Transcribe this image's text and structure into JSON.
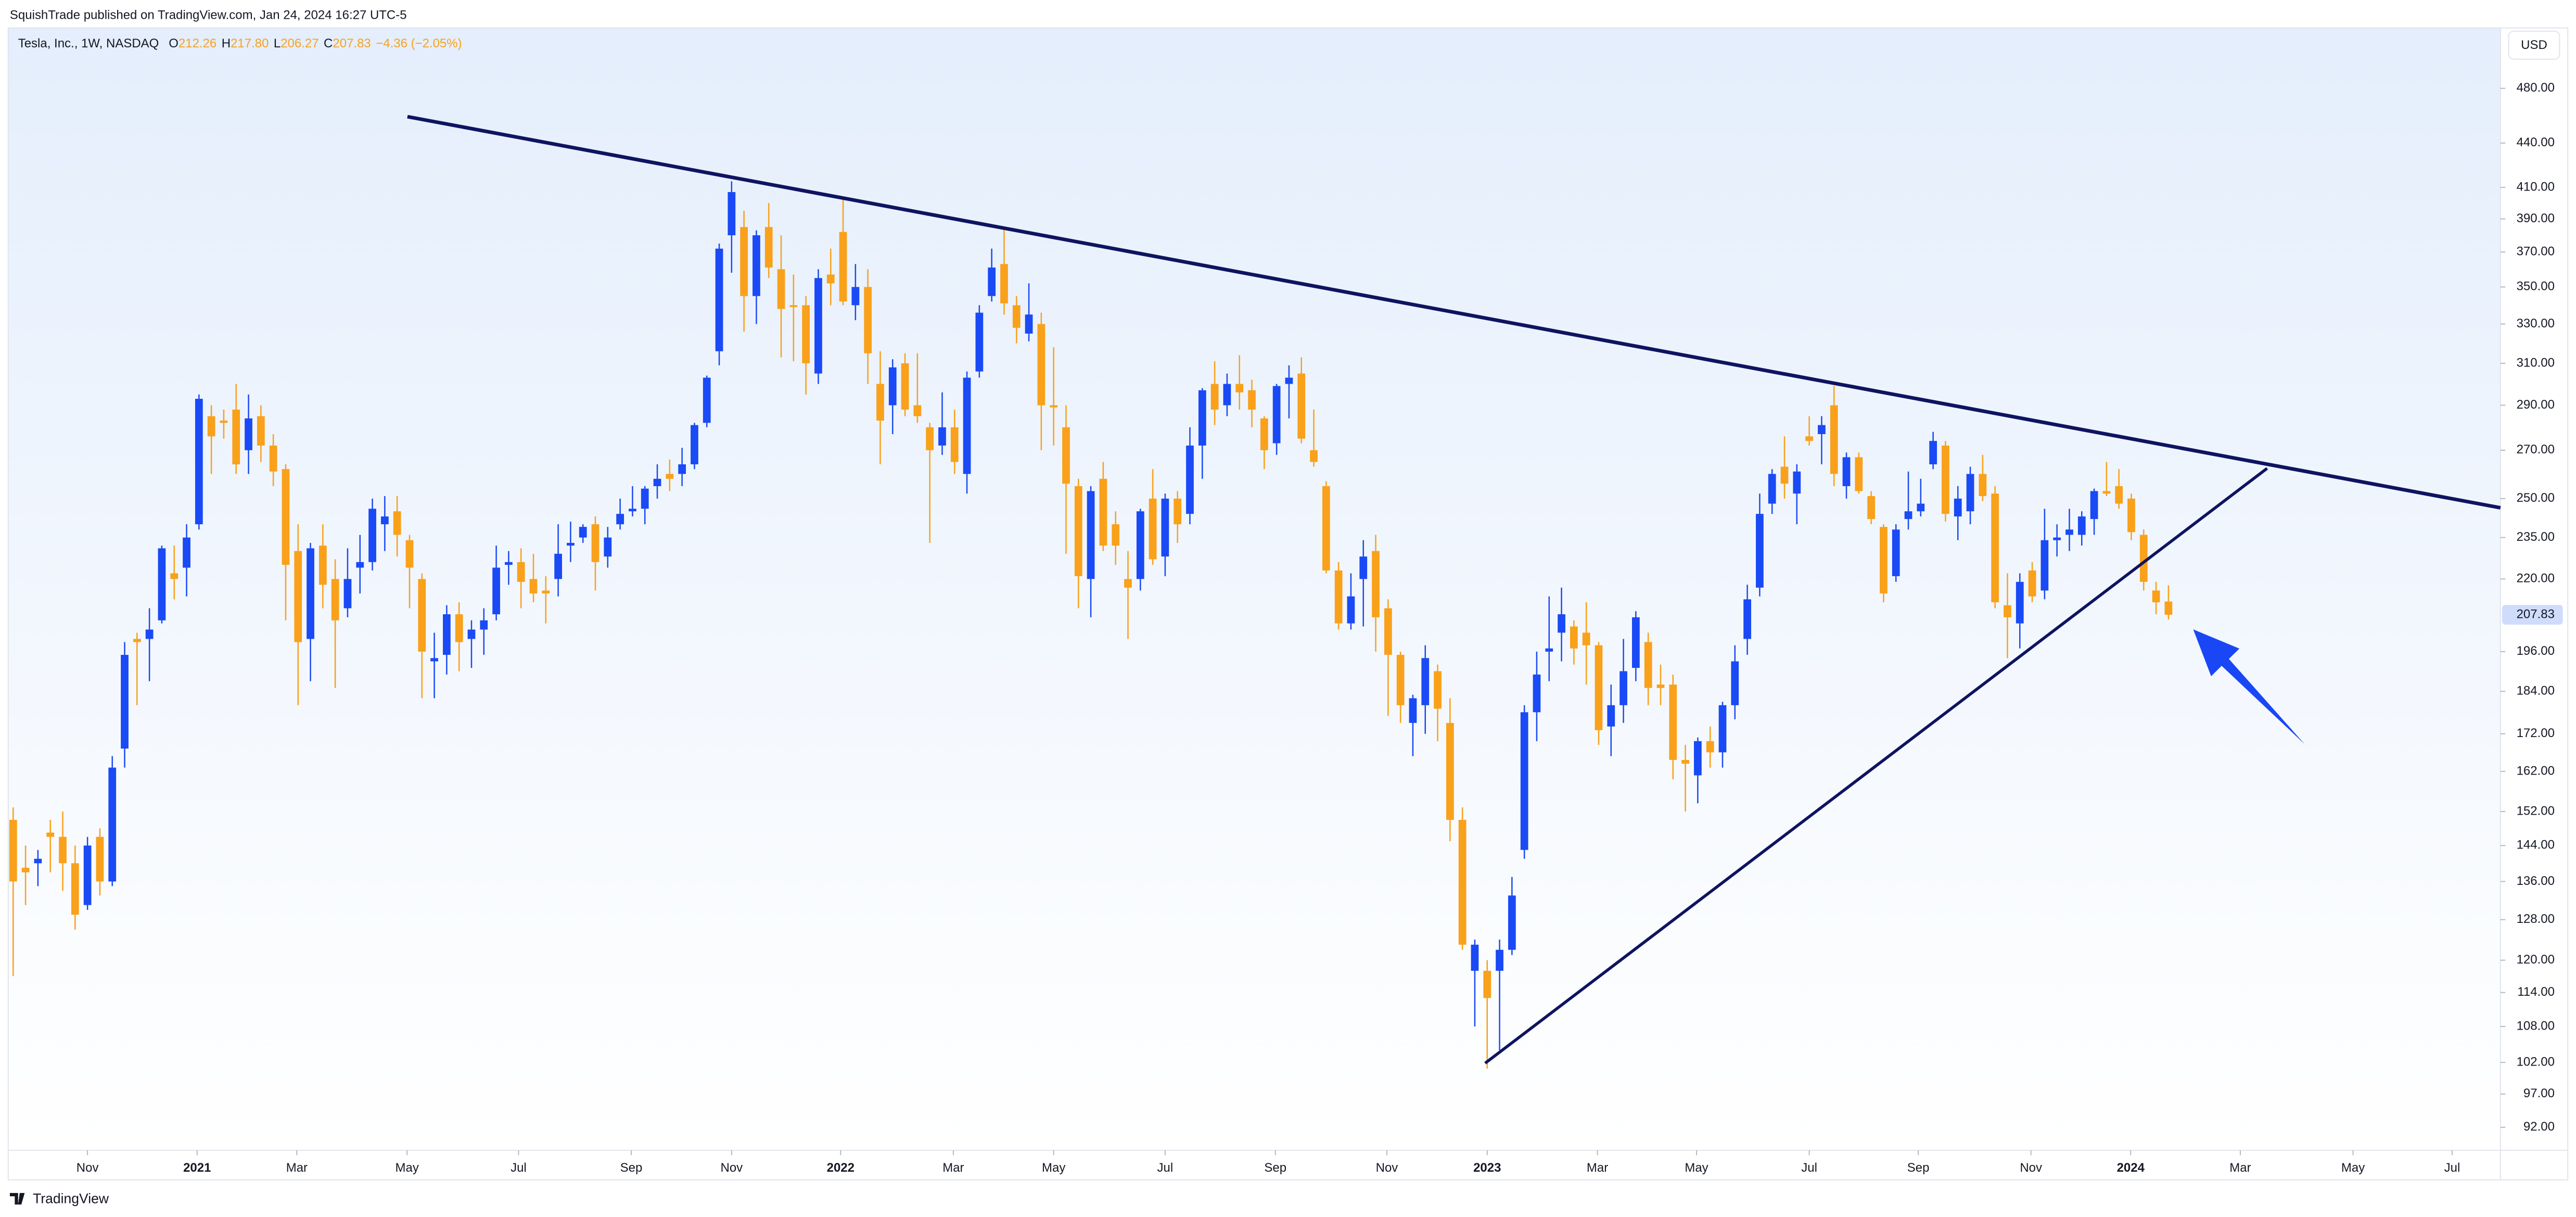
{
  "header": {
    "publisher": "SquishTrade published on TradingView.com, Jan 24, 2024 16:27 UTC-5",
    "currency": "USD",
    "ohlc": [
      {
        "label": "O",
        "value": "212.26"
      },
      {
        "label": "H",
        "value": "217.80"
      },
      {
        "label": "L",
        "value": "206.27"
      },
      {
        "label": "C",
        "value": "207.83"
      }
    ],
    "change": "−4.36 (−2.05%)"
  },
  "footer": {
    "brand": "TradingView"
  },
  "chart_data": {
    "type": "candlestick",
    "title": "Tesla, Inc., 1W, NASDAQ",
    "open": [
      150,
      139,
      140,
      147,
      146,
      140,
      131,
      146,
      136,
      168,
      200,
      200,
      206,
      222,
      224,
      240,
      285,
      283,
      288,
      270,
      285,
      272,
      262,
      230,
      200,
      232,
      220,
      210,
      224,
      226,
      240,
      245,
      234,
      220,
      193,
      195,
      208,
      200,
      203,
      208,
      225,
      226,
      220,
      216,
      220,
      232,
      235,
      240,
      228,
      240,
      245,
      246,
      255,
      260,
      260,
      264,
      282,
      316,
      380,
      385,
      345,
      385,
      360,
      340,
      340,
      305,
      357,
      382,
      340,
      350,
      300,
      290,
      310,
      290,
      280,
      272,
      280,
      260,
      306,
      345,
      363,
      340,
      325,
      330,
      290,
      280,
      255,
      220,
      258,
      240,
      220,
      220,
      250,
      228,
      250,
      244,
      272,
      300,
      290,
      300,
      297,
      284,
      273,
      300,
      305,
      270,
      255,
      223,
      205,
      220,
      230,
      210,
      195,
      175,
      180,
      190,
      175,
      150,
      118,
      118,
      118,
      122,
      143,
      178,
      196,
      202,
      204,
      202,
      198,
      174,
      180,
      191,
      199,
      186,
      186,
      165,
      161,
      170,
      167,
      180,
      200,
      217,
      248,
      263,
      252,
      276,
      277,
      290,
      255,
      267,
      251,
      239,
      221,
      242,
      245,
      264,
      272,
      243,
      245,
      260,
      252,
      211,
      205,
      223,
      216,
      234,
      236,
      236,
      242,
      253,
      255,
      250,
      236,
      216,
      212.26
    ],
    "high": [
      153,
      144,
      143,
      150,
      152,
      144,
      146,
      148,
      166,
      199,
      202,
      210,
      232,
      232,
      240,
      295,
      290,
      288,
      300,
      295,
      290,
      277,
      264,
      240,
      233,
      240,
      227,
      231,
      236,
      250,
      251,
      251,
      236,
      222,
      202,
      211,
      212,
      206,
      210,
      232,
      230,
      231,
      229,
      221,
      240,
      241,
      240,
      243,
      239,
      250,
      255,
      255,
      264,
      266,
      271,
      282,
      304,
      375,
      414,
      395,
      383,
      400,
      380,
      357,
      345,
      360,
      372,
      402,
      363,
      360,
      316,
      312,
      315,
      315,
      282,
      296,
      288,
      306,
      340,
      372,
      384,
      345,
      352,
      336,
      318,
      290,
      258,
      255,
      265,
      245,
      230,
      246,
      262,
      252,
      253,
      280,
      298,
      311,
      305,
      314,
      302,
      285,
      300,
      309,
      313,
      288,
      257,
      226,
      222,
      234,
      236,
      213,
      196,
      183,
      198,
      192,
      182,
      153,
      124,
      120,
      124,
      137,
      180,
      196,
      214,
      217,
      206,
      212,
      199,
      186,
      200,
      209,
      202,
      192,
      189,
      169,
      171,
      174,
      181,
      198,
      218,
      252,
      262,
      276,
      264,
      285,
      285,
      299,
      269,
      269,
      253,
      240,
      240,
      261,
      258,
      278,
      274,
      255,
      263,
      268,
      255,
      222,
      222,
      226,
      246,
      240,
      246,
      245,
      254,
      265,
      262,
      252,
      238,
      219,
      217.8
    ],
    "low": [
      117,
      131,
      135,
      138,
      134,
      126,
      130,
      133,
      135,
      163,
      180,
      187,
      205,
      213,
      214,
      238,
      260,
      275,
      260,
      260,
      265,
      255,
      206,
      180,
      187,
      210,
      185,
      207,
      215,
      223,
      230,
      228,
      210,
      182,
      182,
      189,
      190,
      191,
      195,
      206,
      218,
      210,
      212,
      205,
      214,
      226,
      233,
      216,
      224,
      238,
      243,
      240,
      250,
      253,
      255,
      262,
      280,
      309,
      358,
      326,
      330,
      355,
      313,
      311,
      295,
      300,
      340,
      340,
      332,
      300,
      264,
      277,
      285,
      282,
      233,
      268,
      260,
      252,
      303,
      342,
      335,
      320,
      321,
      270,
      272,
      229,
      210,
      207,
      230,
      225,
      200,
      216,
      225,
      221,
      233,
      240,
      258,
      281,
      285,
      288,
      280,
      262,
      268,
      284,
      273,
      263,
      222,
      203,
      203,
      204,
      196,
      177,
      175,
      166,
      172,
      170,
      145,
      122,
      108,
      101,
      104,
      121,
      141,
      170,
      187,
      193,
      192,
      186,
      169,
      166,
      175,
      187,
      180,
      180,
      160,
      152,
      154,
      163,
      163,
      176,
      195,
      214,
      244,
      250,
      240,
      272,
      264,
      255,
      250,
      252,
      240,
      212,
      219,
      238,
      243,
      262,
      241,
      234,
      240,
      249,
      210,
      194,
      197,
      212,
      213,
      228,
      230,
      232,
      236,
      251,
      246,
      234,
      216,
      208,
      206.27
    ],
    "close": [
      136,
      138,
      141,
      146,
      140,
      129,
      144,
      136,
      163,
      195,
      199,
      203,
      231,
      220,
      235,
      293,
      276,
      282,
      264,
      284,
      272,
      261,
      225,
      199,
      231,
      218,
      206,
      220,
      226,
      246,
      243,
      236,
      224,
      196,
      194,
      208,
      199,
      203,
      206,
      224,
      226,
      219,
      215,
      215,
      229,
      233,
      239,
      226,
      235,
      244,
      246,
      254,
      258,
      258,
      264,
      281,
      303,
      372,
      407,
      345,
      380,
      361,
      338,
      339,
      310,
      355,
      352,
      342,
      350,
      315,
      283,
      308,
      288,
      285,
      270,
      280,
      265,
      303,
      336,
      361,
      341,
      328,
      335,
      290,
      289,
      256,
      221,
      253,
      232,
      232,
      217,
      245,
      227,
      250,
      240,
      272,
      297,
      288,
      300,
      296,
      288,
      270,
      299,
      303,
      275,
      265,
      223,
      205,
      214,
      228,
      207,
      195,
      180,
      182,
      194,
      179,
      150,
      123,
      123,
      113,
      122,
      133,
      178,
      189,
      197,
      208,
      197,
      198,
      173,
      180,
      190,
      207,
      185,
      185,
      165,
      164,
      170,
      167,
      180,
      193,
      213,
      244,
      260,
      256,
      261,
      274,
      281,
      260,
      267,
      253,
      242,
      215,
      238,
      245,
      248,
      274,
      244,
      250,
      260,
      251,
      212,
      207,
      219,
      214,
      234,
      235,
      238,
      243,
      253,
      252,
      248,
      237,
      219,
      212,
      207.83
    ],
    "up_color": "#1a4af5",
    "down_color": "#f9a11b",
    "log_scale": true,
    "ylim": [
      88.7,
      527
    ],
    "yticks": [
      {
        "value": 480,
        "label": "480.00"
      },
      {
        "value": 440,
        "label": "440.00"
      },
      {
        "value": 410,
        "label": "410.00"
      },
      {
        "value": 390,
        "label": "390.00"
      },
      {
        "value": 370,
        "label": "370.00"
      },
      {
        "value": 350,
        "label": "350.00"
      },
      {
        "value": 330,
        "label": "330.00"
      },
      {
        "value": 310,
        "label": "310.00"
      },
      {
        "value": 290,
        "label": "290.00"
      },
      {
        "value": 270,
        "label": "270.00"
      },
      {
        "value": 250,
        "label": "250.00"
      },
      {
        "value": 235,
        "label": "235.00"
      },
      {
        "value": 220,
        "label": "220.00"
      },
      {
        "value": 196,
        "label": "196.00"
      },
      {
        "value": 184,
        "label": "184.00"
      },
      {
        "value": 172,
        "label": "172.00"
      },
      {
        "value": 162,
        "label": "162.00"
      },
      {
        "value": 152,
        "label": "152.00"
      },
      {
        "value": 144,
        "label": "144.00"
      },
      {
        "value": 136,
        "label": "136.00"
      },
      {
        "value": 128,
        "label": "128.00"
      },
      {
        "value": 120,
        "label": "120.00"
      },
      {
        "value": 114,
        "label": "114.00"
      },
      {
        "value": 108,
        "label": "108.00"
      },
      {
        "value": 102,
        "label": "102.00"
      },
      {
        "value": 97,
        "label": "97.00"
      },
      {
        "value": 92,
        "label": "92.00"
      }
    ],
    "last_price_label": "207.83",
    "xlim": [
      -0.4,
      200.8
    ],
    "xticks": [
      {
        "value": 6.0,
        "label": "Nov"
      },
      {
        "value": 14.85,
        "label": "2021"
      },
      {
        "value": 22.9,
        "label": "Mar"
      },
      {
        "value": 31.8,
        "label": "May"
      },
      {
        "value": 40.8,
        "label": "Jul"
      },
      {
        "value": 49.9,
        "label": "Sep"
      },
      {
        "value": 58.0,
        "label": "Nov"
      },
      {
        "value": 66.8,
        "label": "2022"
      },
      {
        "value": 75.9,
        "label": "Mar"
      },
      {
        "value": 84.0,
        "label": "May"
      },
      {
        "value": 93.0,
        "label": "Jul"
      },
      {
        "value": 101.9,
        "label": "Sep"
      },
      {
        "value": 110.9,
        "label": "Nov"
      },
      {
        "value": 119.0,
        "label": "2023"
      },
      {
        "value": 127.9,
        "label": "Mar"
      },
      {
        "value": 135.9,
        "label": "May"
      },
      {
        "value": 145.0,
        "label": "Jul"
      },
      {
        "value": 153.8,
        "label": "Sep"
      },
      {
        "value": 162.9,
        "label": "Nov"
      },
      {
        "value": 170.95,
        "label": "2024"
      },
      {
        "value": 179.8,
        "label": "Mar"
      },
      {
        "value": 188.9,
        "label": "May"
      },
      {
        "value": 196.9,
        "label": "Jul"
      }
    ],
    "grid": false
  }
}
